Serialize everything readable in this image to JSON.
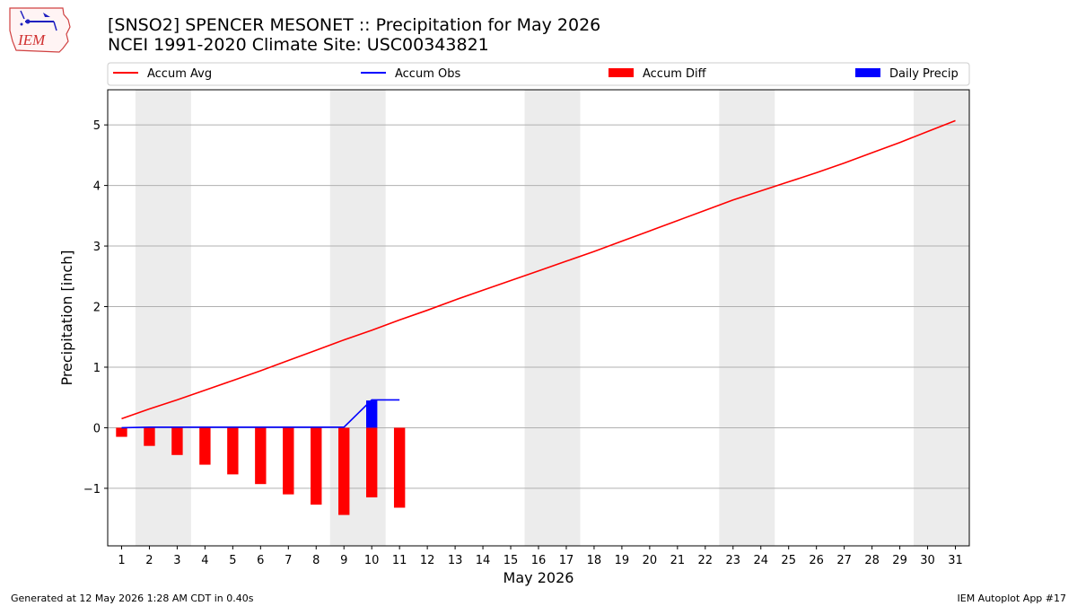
{
  "title_line1": "[SNSO2] SPENCER MESONET :: Precipitation for May 2026",
  "title_line2": "NCEI 1991-2020 Climate Site: USC00343821",
  "logo_text": "IEM",
  "footer_left": "Generated at 12 May 2026 1:28 AM CDT in 0.40s",
  "footer_right": "IEM Autoplot App #17",
  "colors": {
    "avg": "#ff0000",
    "obs": "#0000ff",
    "diff": "#ff0000",
    "daily": "#0000ff",
    "weekend": "#ececec",
    "grid": "#b0b0b0"
  },
  "chart_data": {
    "type": "line",
    "xlabel": "May 2026",
    "ylabel": "Precipitation [inch]",
    "xlim": [
      0.5,
      31.5
    ],
    "ylim": [
      -1.95,
      5.58
    ],
    "yticks": [
      -1,
      0,
      1,
      2,
      3,
      4,
      5
    ],
    "ytick_labels": [
      "−1",
      "0",
      "1",
      "2",
      "3",
      "4",
      "5"
    ],
    "x": [
      1,
      2,
      3,
      4,
      5,
      6,
      7,
      8,
      9,
      10,
      11,
      12,
      13,
      14,
      15,
      16,
      17,
      18,
      19,
      20,
      21,
      22,
      23,
      24,
      25,
      26,
      27,
      28,
      29,
      30,
      31
    ],
    "grid": "horizontal",
    "weekend_spans": [
      [
        1.5,
        3.5
      ],
      [
        8.5,
        10.5
      ],
      [
        15.5,
        17.5
      ],
      [
        22.5,
        24.5
      ],
      [
        29.5,
        31.5
      ]
    ],
    "legend": [
      "Accum Avg",
      "Accum Obs",
      "Accum Diff",
      "Daily Precip"
    ],
    "legend_placement": "top",
    "series": [
      {
        "name": "Accum Avg",
        "kind": "line",
        "x": [
          1,
          2,
          3,
          4,
          5,
          6,
          7,
          8,
          9,
          10,
          11,
          12,
          13,
          14,
          15,
          16,
          17,
          18,
          19,
          20,
          21,
          22,
          23,
          24,
          25,
          26,
          27,
          28,
          29,
          30,
          31
        ],
        "values": [
          0.15,
          0.31,
          0.46,
          0.62,
          0.78,
          0.94,
          1.11,
          1.28,
          1.45,
          1.61,
          1.78,
          1.94,
          2.11,
          2.27,
          2.43,
          2.59,
          2.75,
          2.91,
          3.08,
          3.25,
          3.42,
          3.59,
          3.76,
          3.91,
          4.06,
          4.21,
          4.37,
          4.54,
          4.71,
          4.89,
          5.07
        ]
      },
      {
        "name": "Accum Obs",
        "kind": "line",
        "x": [
          1,
          2,
          3,
          4,
          5,
          6,
          7,
          8,
          9,
          10,
          11
        ],
        "values": [
          0,
          0.01,
          0.01,
          0.01,
          0.01,
          0.01,
          0.01,
          0.01,
          0.01,
          0.46,
          0.46
        ]
      },
      {
        "name": "Accum Diff",
        "kind": "bar",
        "x": [
          1,
          2,
          3,
          4,
          5,
          6,
          7,
          8,
          9,
          10,
          11
        ],
        "values": [
          -0.15,
          -0.3,
          -0.45,
          -0.61,
          -0.77,
          -0.93,
          -1.1,
          -1.27,
          -1.44,
          -1.15,
          -1.32
        ]
      },
      {
        "name": "Daily Precip",
        "kind": "bar",
        "x": [
          1,
          2,
          3,
          4,
          5,
          6,
          7,
          8,
          9,
          10,
          11
        ],
        "values": [
          0,
          0,
          0,
          0,
          0,
          0,
          0,
          0,
          0,
          0.45,
          0
        ]
      }
    ]
  }
}
